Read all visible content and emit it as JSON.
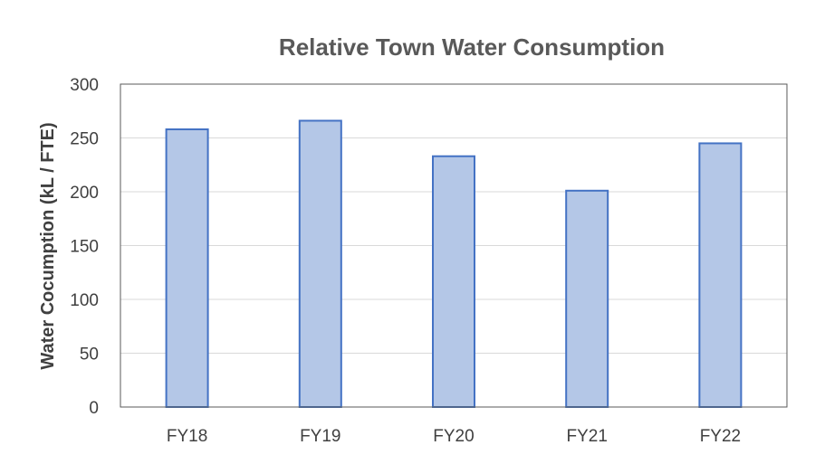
{
  "chart_data": {
    "type": "bar",
    "title": "Relative Town Water Consumption",
    "xlabel": "",
    "ylabel": "Water Cocumption (kL / FTE)",
    "categories": [
      "FY18",
      "FY19",
      "FY20",
      "FY21",
      "FY22"
    ],
    "values": [
      258,
      266,
      233,
      201,
      245
    ],
    "ylim": [
      0,
      300
    ],
    "yticks": [
      0,
      50,
      100,
      150,
      200,
      250,
      300
    ],
    "grid": true,
    "legend": "none",
    "bar_fill": "#b4c7e7",
    "bar_stroke": "#4472c4"
  }
}
